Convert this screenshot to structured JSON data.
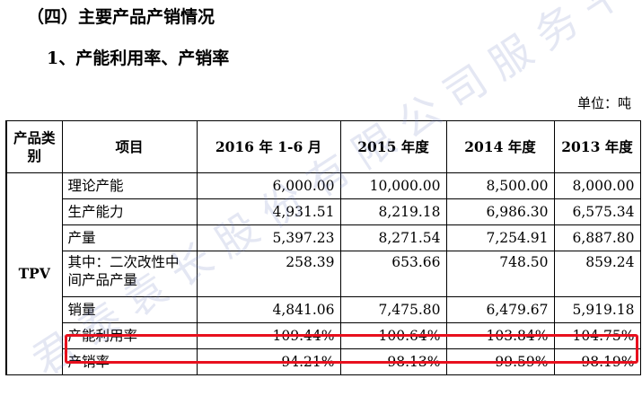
{
  "section_title": "（四）主要产品产销情况",
  "sub_title": "1、产能利用率、产销率",
  "unit": "单位：吨",
  "table": {
    "headers": [
      "产品类别",
      "项目",
      "2016 年 1-6 月",
      "2015 年度",
      "2014 年度",
      "2013 年度"
    ],
    "category": "TPV",
    "rows": [
      {
        "item": "理论产能",
        "values": [
          "6,000.00",
          "10,000.00",
          "8,500.00",
          "8,000.00"
        ]
      },
      {
        "item": "生产能力",
        "values": [
          "4,931.51",
          "8,219.18",
          "6,986.30",
          "6,575.34"
        ]
      },
      {
        "item": "产量",
        "values": [
          "5,397.23",
          "8,271.54",
          "7,254.91",
          "6,887.80"
        ]
      },
      {
        "item": "其中：二次改性中间产品产量",
        "values": [
          "258.39",
          "653.66",
          "748.50",
          "859.24"
        ]
      },
      {
        "item": "销量",
        "values": [
          "4,841.06",
          "7,475.80",
          "6,479.67",
          "5,919.18"
        ]
      },
      {
        "item": "产能利用率",
        "values": [
          "109.44%",
          "100.64%",
          "103.84%",
          "104.75%"
        ]
      },
      {
        "item": "产销率",
        "values": [
          "94.21%",
          "98.13%",
          "99.59%",
          "98.19%"
        ]
      }
    ]
  },
  "watermark": {
    "text": "君 泰 袁 长 股 份 有 限 公 司 服 务 平 台",
    "color": "#6f7fbf"
  },
  "highlight_color": "#e8101e"
}
